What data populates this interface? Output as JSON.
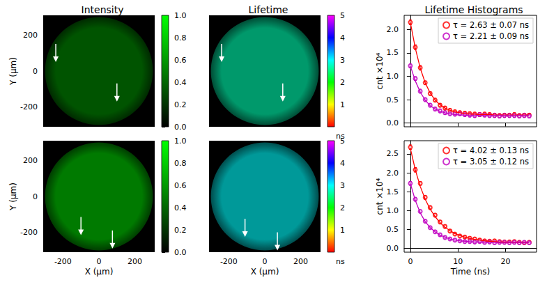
{
  "chart_data": [
    {
      "type": "image",
      "title": "Intensity",
      "mean_value": 0.33,
      "field_center": [
        0,
        0
      ],
      "field_radius": 300,
      "xlim": [
        -310,
        310
      ],
      "ylim": [
        -310,
        310
      ],
      "xticks": [
        -200,
        0,
        200
      ],
      "yticks": [
        -200,
        0,
        200
      ],
      "y_label": "Y (μm)",
      "tick_labels": "y",
      "arrows": [
        {
          "x": -240,
          "y": 50
        },
        {
          "x": 100,
          "y": -170
        }
      ],
      "colorbar": {
        "range": [
          0,
          1
        ],
        "colors": [
          "#000000",
          "#00ff00"
        ],
        "ticks": [
          {
            "value": 0,
            "label": "0.0"
          },
          {
            "value": 0.2,
            "label": "0.2"
          },
          {
            "value": 0.4,
            "label": "0.4"
          },
          {
            "value": 0.6,
            "label": "0.6"
          },
          {
            "value": 0.8,
            "label": "0.8"
          },
          {
            "value": 1,
            "label": "1.0"
          }
        ]
      }
    },
    {
      "type": "image",
      "title": "Lifetime",
      "mean_value": 2.7,
      "field_center": [
        0,
        0
      ],
      "field_radius": 300,
      "xlim": [
        -310,
        310
      ],
      "ylim": [
        -310,
        310
      ],
      "xticks": [
        -200,
        0,
        200
      ],
      "yticks": [
        -200,
        0,
        200
      ],
      "tick_labels": false,
      "arrows": [
        {
          "x": -240,
          "y": 50
        },
        {
          "x": 100,
          "y": -170
        }
      ],
      "colorbar": {
        "range": [
          0,
          5
        ],
        "colors": [
          "#ff0000",
          "#ffff00",
          "#00ff00",
          "#00ffff",
          "#0000ff",
          "#ff00ff"
        ],
        "ticks": [
          1,
          2,
          3,
          4,
          5
        ],
        "unit_label": "ns"
      }
    },
    {
      "type": "scatter",
      "title": "Lifetime Histograms",
      "y_label": "cnt ×10⁴",
      "tick_labels": "y",
      "legend": "upper right",
      "xlim": [
        -1.3,
        26.5
      ],
      "ylim": [
        -0.08,
        2.3
      ],
      "xticks": [
        0,
        10,
        20
      ],
      "yticks": [
        {
          "value": 0,
          "label": "0.0"
        },
        {
          "value": 0.5,
          "label": "0.5"
        },
        {
          "value": 1,
          "label": "1.0"
        },
        {
          "value": 1.5,
          "label": "1.5"
        },
        {
          "value": 2,
          "label": "2.0"
        }
      ],
      "x": [
        0,
        1.04,
        2.08,
        3.12,
        4.16,
        5.2,
        6.24,
        7.28,
        8.32,
        9.36,
        10.4,
        11.44,
        12.48,
        13.52,
        14.56,
        15.6,
        16.64,
        17.68,
        18.72,
        19.76,
        20.8,
        21.84,
        22.88,
        23.92,
        24.96
      ],
      "series": [
        {
          "name": "τ = 2.63 ± 0.07 ns",
          "color": "#ff0000",
          "marker": "circle",
          "values": [
            2.15,
            1.62,
            1.18,
            0.86,
            0.63,
            0.49,
            0.38,
            0.32,
            0.27,
            0.24,
            0.22,
            0.21,
            0.2,
            0.19,
            0.18,
            0.19,
            0.18,
            0.17,
            0.16,
            0.17,
            0.17,
            0.18,
            0.16,
            0.17,
            0.17
          ],
          "errors": [
            0.05,
            0.05,
            0.05,
            0.04,
            0.04,
            0.04,
            0.04,
            0.04,
            0.04,
            0.04,
            0.04,
            0.04,
            0.04,
            0.04,
            0.04,
            0.04,
            0.04,
            0.04,
            0.04,
            0.04,
            0.04,
            0.04,
            0.04,
            0.04,
            0.04
          ],
          "fit": [
            2.15,
            1.6,
            1.17,
            0.86,
            0.64,
            0.49,
            0.39,
            0.32,
            0.27,
            0.24,
            0.22,
            0.2,
            0.19,
            0.19,
            0.18,
            0.18,
            0.18,
            0.17,
            0.17,
            0.17,
            0.17,
            0.17,
            0.17,
            0.17,
            0.17
          ]
        },
        {
          "name": "τ = 2.21 ± 0.09 ns",
          "color": "#c000c0",
          "marker": "circle",
          "values": [
            1.22,
            0.95,
            0.68,
            0.5,
            0.38,
            0.3,
            0.26,
            0.22,
            0.2,
            0.19,
            0.2,
            0.18,
            0.17,
            0.16,
            0.18,
            0.17,
            0.16,
            0.16,
            0.15,
            0.16,
            0.16,
            0.16,
            0.15,
            0.16,
            0.15
          ],
          "errors": [
            0.04,
            0.04,
            0.04,
            0.04,
            0.04,
            0.04,
            0.04,
            0.04,
            0.04,
            0.04,
            0.04,
            0.04,
            0.04,
            0.04,
            0.04,
            0.04,
            0.04,
            0.04,
            0.04,
            0.04,
            0.04,
            0.04,
            0.04,
            0.04,
            0.04
          ],
          "fit": [
            1.22,
            0.9,
            0.66,
            0.49,
            0.37,
            0.3,
            0.25,
            0.22,
            0.2,
            0.18,
            0.17,
            0.17,
            0.16,
            0.16,
            0.16,
            0.16,
            0.16,
            0.16,
            0.16,
            0.16,
            0.16,
            0.16,
            0.16,
            0.16,
            0.16
          ]
        }
      ]
    },
    {
      "type": "image",
      "mean_value": 0.48,
      "field_center": [
        0,
        0
      ],
      "field_radius": 300,
      "xlim": [
        -310,
        310
      ],
      "ylim": [
        -310,
        310
      ],
      "xticks": [
        -200,
        0,
        200
      ],
      "yticks": [
        -200,
        0,
        200
      ],
      "x_label": "X (μm)",
      "y_label": "Y (μm)",
      "tick_labels": true,
      "arrows": [
        {
          "x": -100,
          "y": -215
        },
        {
          "x": 75,
          "y": -290
        }
      ],
      "colorbar": {
        "range": [
          0,
          1
        ],
        "colors": [
          "#000000",
          "#00ff00"
        ],
        "ticks": [
          {
            "value": 0,
            "label": "0.0"
          },
          {
            "value": 0.2,
            "label": "0.2"
          },
          {
            "value": 0.4,
            "label": "0.4"
          },
          {
            "value": 0.6,
            "label": "0.6"
          },
          {
            "value": 0.8,
            "label": "0.8"
          },
          {
            "value": 1,
            "label": "1.0"
          }
        ]
      }
    },
    {
      "type": "image",
      "mean_value": 3.0,
      "field_center": [
        0,
        0
      ],
      "field_radius": 300,
      "xlim": [
        -310,
        310
      ],
      "ylim": [
        -310,
        310
      ],
      "xticks": [
        -200,
        0,
        200
      ],
      "yticks": [
        -200,
        0,
        200
      ],
      "x_label": "X (μm)",
      "tick_labels": "x",
      "arrows": [
        {
          "x": -110,
          "y": -225
        },
        {
          "x": 70,
          "y": -300
        }
      ],
      "colorbar": {
        "range": [
          0,
          5
        ],
        "colors": [
          "#ff0000",
          "#ffff00",
          "#00ff00",
          "#00ffff",
          "#0000ff",
          "#ff00ff"
        ],
        "ticks": [
          1,
          2,
          3,
          4,
          5
        ],
        "unit_label": "ns"
      }
    },
    {
      "type": "scatter",
      "x_label": "Time (ns)",
      "y_label": "cnt ×10⁴",
      "tick_labels": true,
      "legend": "upper right",
      "xlim": [
        -1.3,
        26.5
      ],
      "ylim": [
        -0.1,
        2.85
      ],
      "xticks": [
        0,
        10,
        20
      ],
      "yticks": [
        {
          "value": 0,
          "label": "0.0"
        },
        {
          "value": 0.5,
          "label": "0.5"
        },
        {
          "value": 1,
          "label": "1.0"
        },
        {
          "value": 1.5,
          "label": "1.5"
        },
        {
          "value": 2,
          "label": "2.0"
        },
        {
          "value": 2.5,
          "label": "2.5"
        }
      ],
      "x": [
        0,
        1.04,
        2.08,
        3.12,
        4.16,
        5.2,
        6.24,
        7.28,
        8.32,
        9.36,
        10.4,
        11.44,
        12.48,
        13.52,
        14.56,
        15.6,
        16.64,
        17.68,
        18.72,
        19.76,
        20.8,
        21.84,
        22.88,
        23.92,
        24.96
      ],
      "series": [
        {
          "name": "τ = 4.02 ± 0.13 ns",
          "color": "#ff0000",
          "marker": "circle",
          "values": [
            2.68,
            2.08,
            1.72,
            1.35,
            1.08,
            0.88,
            0.7,
            0.58,
            0.46,
            0.38,
            0.33,
            0.3,
            0.27,
            0.25,
            0.22,
            0.2,
            0.19,
            0.2,
            0.18,
            0.17,
            0.17,
            0.18,
            0.16,
            0.15,
            0.16
          ],
          "errors": [
            0.06,
            0.06,
            0.05,
            0.05,
            0.05,
            0.04,
            0.04,
            0.04,
            0.04,
            0.04,
            0.04,
            0.04,
            0.04,
            0.04,
            0.04,
            0.04,
            0.04,
            0.04,
            0.04,
            0.04,
            0.04,
            0.04,
            0.04,
            0.04,
            0.04
          ],
          "fit": [
            2.65,
            2.08,
            1.64,
            1.3,
            1.04,
            0.84,
            0.68,
            0.56,
            0.47,
            0.39,
            0.34,
            0.3,
            0.26,
            0.24,
            0.22,
            0.2,
            0.19,
            0.18,
            0.17,
            0.17,
            0.16,
            0.16,
            0.16,
            0.16,
            0.15
          ]
        },
        {
          "name": "τ = 3.05 ± 0.12 ns",
          "color": "#c000c0",
          "marker": "circle",
          "values": [
            1.72,
            1.3,
            0.98,
            0.72,
            0.55,
            0.44,
            0.36,
            0.29,
            0.25,
            0.22,
            0.2,
            0.18,
            0.18,
            0.17,
            0.18,
            0.16,
            0.17,
            0.15,
            0.16,
            0.16,
            0.15,
            0.16,
            0.15,
            0.16,
            0.15
          ],
          "errors": [
            0.05,
            0.05,
            0.04,
            0.04,
            0.04,
            0.04,
            0.04,
            0.04,
            0.04,
            0.04,
            0.04,
            0.04,
            0.04,
            0.04,
            0.04,
            0.04,
            0.04,
            0.04,
            0.04,
            0.04,
            0.04,
            0.04,
            0.04,
            0.04,
            0.04
          ],
          "fit": [
            1.72,
            1.27,
            0.94,
            0.71,
            0.55,
            0.44,
            0.35,
            0.3,
            0.25,
            0.22,
            0.2,
            0.19,
            0.18,
            0.17,
            0.17,
            0.16,
            0.16,
            0.16,
            0.15,
            0.15,
            0.15,
            0.15,
            0.15,
            0.15,
            0.15
          ]
        }
      ]
    }
  ]
}
